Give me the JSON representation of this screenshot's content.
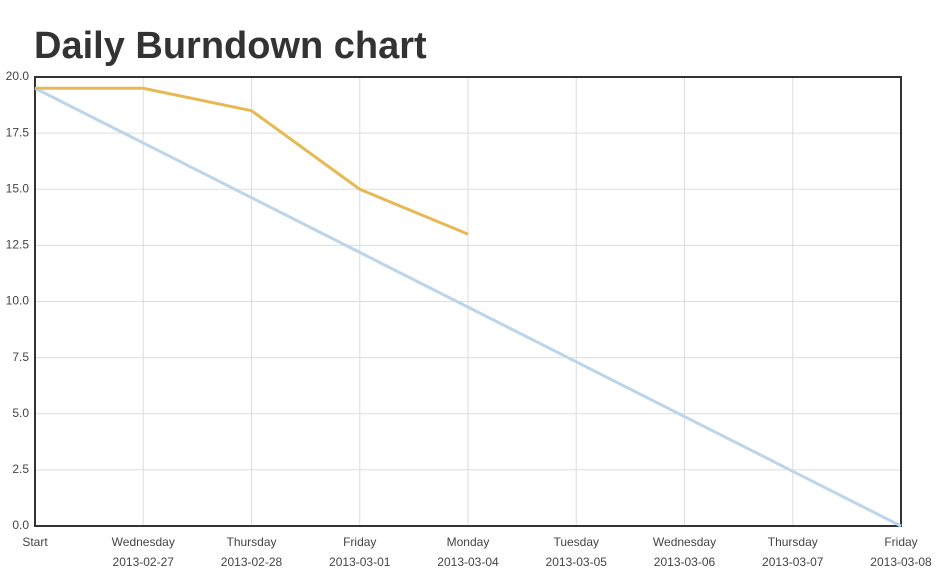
{
  "chart_data": {
    "type": "line",
    "title": "Daily Burndown chart",
    "categories": [
      "Start",
      "Wednesday",
      "Thursday",
      "Friday",
      "Monday",
      "Tuesday",
      "Wednesday",
      "Thursday",
      "Friday"
    ],
    "x_sublabels": [
      null,
      "2013-02-27",
      "2013-02-28",
      "2013-03-01",
      "2013-03-04",
      "2013-03-05",
      "2013-03-06",
      "2013-03-07",
      "2013-03-08"
    ],
    "series": [
      {
        "color": "#bcd5ea",
        "values": [
          19.5,
          17.0625,
          14.625,
          12.1875,
          9.75,
          7.3125,
          4.875,
          2.4375,
          0
        ]
      },
      {
        "color": "#e6b955",
        "values": [
          19.5,
          19.5,
          18.5,
          15,
          13,
          null,
          null,
          null,
          null
        ]
      }
    ],
    "ylim": [
      0,
      20
    ],
    "yticks": [
      {
        "value": 0,
        "label": "0.0"
      },
      2.5,
      {
        "value": 5,
        "label": "5.0"
      },
      7.5,
      {
        "value": 10,
        "label": "10.0"
      },
      12.5,
      {
        "value": 15,
        "label": "15.0"
      },
      17.5,
      {
        "value": 20,
        "label": "20.0"
      }
    ],
    "grid": true
  }
}
